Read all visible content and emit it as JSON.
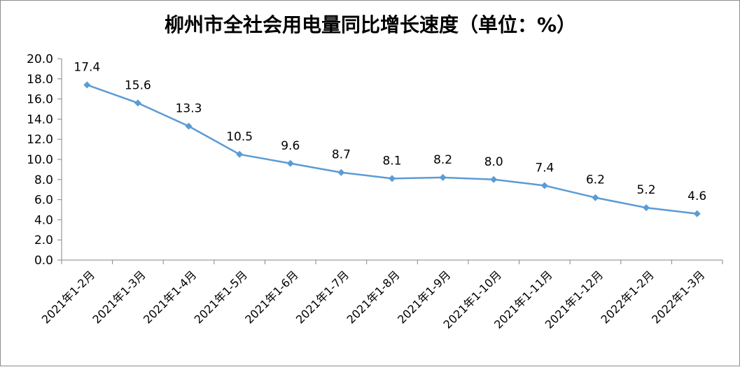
{
  "chart_data": {
    "type": "line",
    "title": "柳州市全社会用电量同比增长速度（单位：%）",
    "categories": [
      "2021年1-2月",
      "2021年1-3月",
      "2021年1-4月",
      "2021年1-5月",
      "2021年1-6月",
      "2021年1-7月",
      "2021年1-8月",
      "2021年1-9月",
      "2021年1-10月",
      "2021年1-11月",
      "2021年1-12月",
      "2022年1-2月",
      "2022年1-3月"
    ],
    "series": [
      {
        "values": [
          17.4,
          15.6,
          13.3,
          10.5,
          9.6,
          8.7,
          8.1,
          8.2,
          8.0,
          7.4,
          6.2,
          5.2,
          4.6
        ]
      }
    ],
    "data_labels": [
      "17.4",
      "15.6",
      "13.3",
      "10.5",
      "9.6",
      "8.7",
      "8.1",
      "8.2",
      "8.0",
      "7.4",
      "6.2",
      "5.2",
      "4.6"
    ],
    "y_tick_labels": [
      "0.0",
      "2.0",
      "4.0",
      "6.0",
      "8.0",
      "10.0",
      "12.0",
      "14.0",
      "16.0",
      "18.0",
      "20.0"
    ],
    "ylim": [
      0,
      20
    ],
    "xlabel": "",
    "ylabel": "",
    "grid": false,
    "legend": "none",
    "colors": {
      "series": "#5B9BD5",
      "axis": "#868686"
    }
  }
}
